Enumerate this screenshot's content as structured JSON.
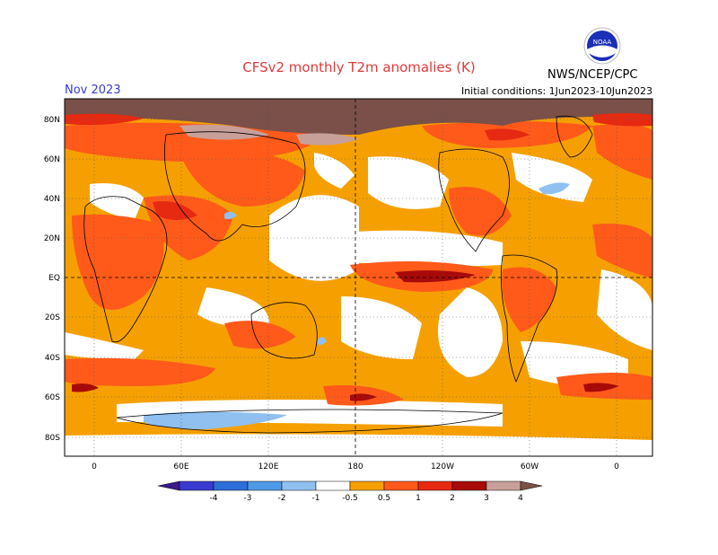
{
  "title": "CFSv2 monthly T2m anomalies (K)",
  "month": "Nov 2023",
  "initial_conditions": "Initial conditions: 1Jun2023-10Jun2023",
  "agency": "NWS/NCEP/CPC",
  "logo_text": "NOAA",
  "lat_labels": [
    "80N",
    "60N",
    "40N",
    "20N",
    "EQ",
    "20S",
    "40S",
    "60S",
    "80S"
  ],
  "lon_labels": [
    "0",
    "60E",
    "120E",
    "180",
    "120W",
    "60W",
    "0"
  ],
  "colorbar": {
    "labels": [
      "-4",
      "-3",
      "-2",
      "-1",
      "-0.5",
      "0.5",
      "1",
      "2",
      "3",
      "4"
    ],
    "colors": [
      "#3a1a8c",
      "#3a3ad0",
      "#2e6ed8",
      "#4f9ae8",
      "#8fc0f0",
      "#ffffff",
      "#f5a000",
      "#ff5a1a",
      "#e62a12",
      "#a80a0a",
      "#c8a09a",
      "#7a5048"
    ]
  }
}
